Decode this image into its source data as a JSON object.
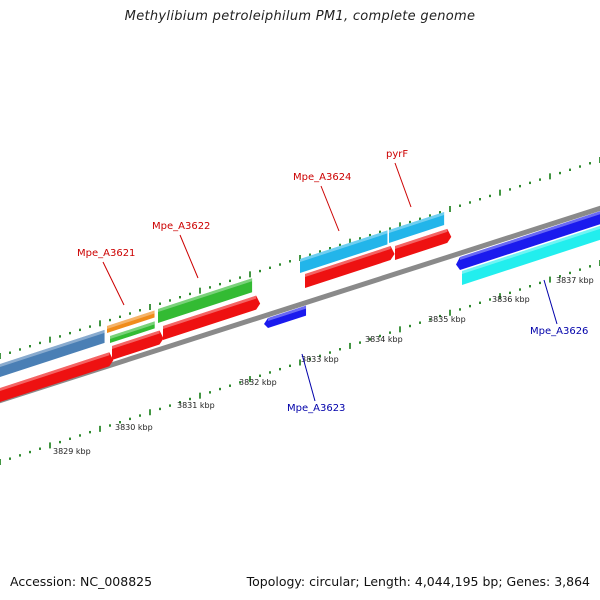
{
  "title": "Methylibium petroleiphilum PM1, complete genome",
  "footer": {
    "accession": "Accession: NC_008825",
    "summary": "Topology: circular; Length: 4,044,195 bp; Genes: 3,864"
  },
  "colors": {
    "backbone": "#8a8a8a",
    "tick": "#2e8b2e",
    "forward_label": "#cc0000",
    "reverse_label": "#0000aa",
    "cds_red": "#ee1111",
    "cds_steelblue": "#4a7fb5",
    "cds_orange": "#f08c1a",
    "cds_green": "#33bb33",
    "cds_skyblue": "#22b5ea",
    "cds_blue": "#1a1aee",
    "cds_cyan": "#22eeee"
  },
  "scale": {
    "unit": "kbp",
    "marks": [
      "3829 kbp",
      "3830 kbp",
      "3831 kbp",
      "3832 kbp",
      "3833 kbp",
      "3834 kbp",
      "3835 kbp",
      "3836 kbp",
      "3837 kbp"
    ]
  },
  "gene_labels": [
    {
      "name": "Mpe_A3621",
      "strand": "forward"
    },
    {
      "name": "Mpe_A3622",
      "strand": "forward"
    },
    {
      "name": "Mpe_A3624",
      "strand": "forward"
    },
    {
      "name": "pyrF",
      "strand": "forward"
    },
    {
      "name": "Mpe_A3623",
      "strand": "reverse"
    },
    {
      "name": "Mpe_A3626",
      "strand": "reverse"
    }
  ]
}
